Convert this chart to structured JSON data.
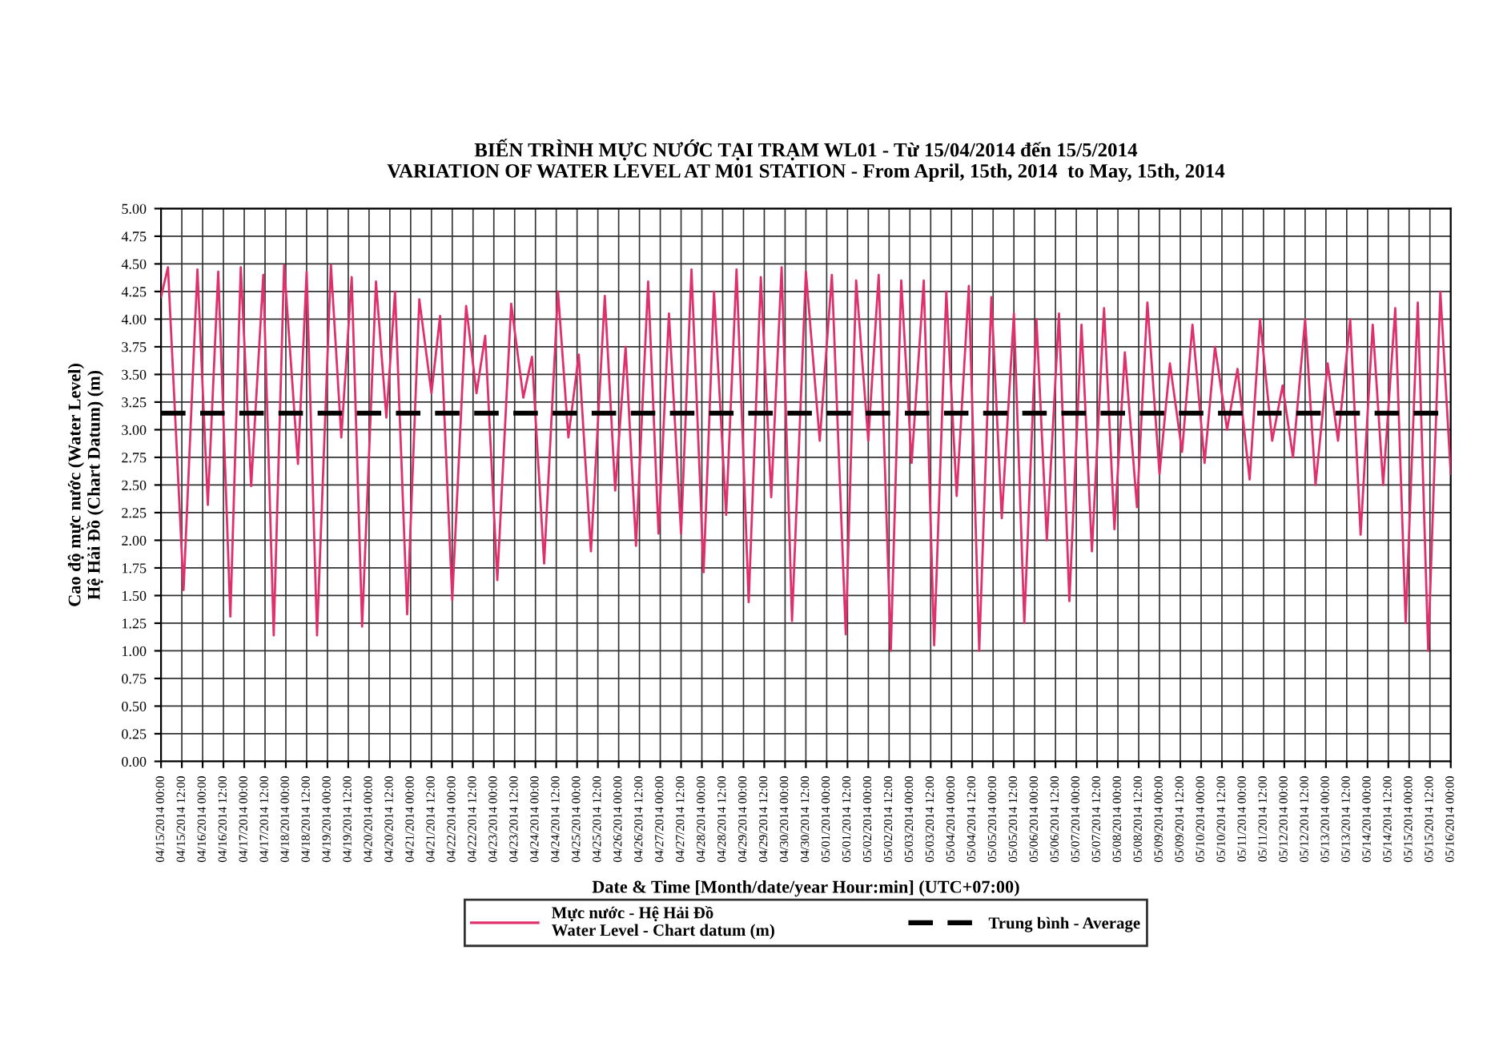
{
  "chart_data": {
    "type": "line",
    "title": "BIẾN TRÌNH MỰC NƯỚC TẠI TRẠM WL01 - Từ 15/04/2014 đến 15/5/2014\nVARIATION OF WATER LEVEL AT M01 STATION - From April, 15th, 2014  to May, 15th, 2014",
    "xlabel": "Date & Time [Month/date/year Hour:min] (UTC+07:00)",
    "ylabel": "Cao độ mực nước (Water Level)\nHệ Hải Đồ (Chart Datum) (m)",
    "series": [
      {
        "name": "Mực nước - Hệ Hải Đồ\nWater Level - Chart datum (m)",
        "color": "#e0306a",
        "x": [
          "2014-04-15T00:00",
          "2014-04-15T04:00",
          "2014-04-15T13:00",
          "2014-04-15T21:00",
          "2014-04-16T03:00",
          "2014-04-16T09:00",
          "2014-04-16T16:00",
          "2014-04-16T22:00",
          "2014-04-17T04:00",
          "2014-04-17T11:00",
          "2014-04-17T17:00",
          "2014-04-17T23:00",
          "2014-04-18T07:00",
          "2014-04-18T12:00",
          "2014-04-18T18:00",
          "2014-04-19T02:00",
          "2014-04-19T08:00",
          "2014-04-19T14:00",
          "2014-04-19T20:00",
          "2014-04-20T04:00",
          "2014-04-20T10:00",
          "2014-04-20T15:00",
          "2014-04-20T22:00",
          "2014-04-21T05:00",
          "2014-04-21T12:00",
          "2014-04-21T17:00",
          "2014-04-22T00:00",
          "2014-04-22T08:00",
          "2014-04-22T14:00",
          "2014-04-22T19:00",
          "2014-04-23T02:00",
          "2014-04-23T10:00",
          "2014-04-23T17:00",
          "2014-04-23T22:00",
          "2014-04-24T05:00",
          "2014-04-24T13:00",
          "2014-04-24T19:00",
          "2014-04-25T01:00",
          "2014-04-25T08:00",
          "2014-04-25T16:00",
          "2014-04-25T22:00",
          "2014-04-26T04:00",
          "2014-04-26T10:00",
          "2014-04-26T17:00",
          "2014-04-26T23:00",
          "2014-04-27T05:00",
          "2014-04-27T12:00",
          "2014-04-27T18:00",
          "2014-04-28T01:00",
          "2014-04-28T07:00",
          "2014-04-28T14:00",
          "2014-04-28T20:00",
          "2014-04-29T03:00",
          "2014-04-29T10:00",
          "2014-04-29T16:00",
          "2014-04-29T22:00",
          "2014-04-30T04:00",
          "2014-04-30T12:00",
          "2014-04-30T20:00",
          "2014-05-01T03:00",
          "2014-05-01T11:00",
          "2014-05-01T17:00",
          "2014-05-02T00:00",
          "2014-05-02T06:00",
          "2014-05-02T13:00",
          "2014-05-02T19:00",
          "2014-05-03T01:00",
          "2014-05-03T08:00",
          "2014-05-03T14:00",
          "2014-05-03T21:00",
          "2014-05-04T03:00",
          "2014-05-04T10:00",
          "2014-05-04T16:00",
          "2014-05-04T23:00",
          "2014-05-05T05:00",
          "2014-05-05T12:00",
          "2014-05-05T18:00",
          "2014-05-06T01:00",
          "2014-05-06T07:00",
          "2014-05-06T14:00",
          "2014-05-06T20:00",
          "2014-05-07T03:00",
          "2014-05-07T09:00",
          "2014-05-07T16:00",
          "2014-05-07T22:00",
          "2014-05-08T04:00",
          "2014-05-08T11:00",
          "2014-05-08T17:00",
          "2014-05-09T00:00",
          "2014-05-09T06:00",
          "2014-05-09T13:00",
          "2014-05-09T19:00",
          "2014-05-10T02:00",
          "2014-05-10T08:00",
          "2014-05-10T15:00",
          "2014-05-10T21:00",
          "2014-05-11T04:00",
          "2014-05-11T10:00",
          "2014-05-11T17:00",
          "2014-05-11T23:00",
          "2014-05-12T05:00",
          "2014-05-12T12:00",
          "2014-05-12T18:00",
          "2014-05-13T01:00",
          "2014-05-13T07:00",
          "2014-05-13T14:00",
          "2014-05-13T20:00",
          "2014-05-14T03:00",
          "2014-05-14T09:00",
          "2014-05-14T16:00",
          "2014-05-14T22:00",
          "2014-05-15T05:00",
          "2014-05-15T11:00",
          "2014-05-15T18:00",
          "2014-05-16T00:00"
        ],
        "values": [
          4.2,
          4.47,
          1.55,
          4.45,
          2.32,
          4.43,
          1.31,
          4.47,
          2.49,
          4.4,
          1.14,
          4.49,
          2.69,
          4.43,
          1.14,
          4.49,
          2.93,
          4.38,
          1.22,
          4.34,
          3.11,
          4.25,
          1.33,
          4.18,
          3.33,
          4.03,
          1.46,
          4.12,
          3.33,
          3.85,
          1.64,
          4.14,
          3.29,
          3.66,
          1.79,
          4.25,
          2.93,
          3.68,
          1.9,
          4.21,
          2.45,
          3.75,
          1.95,
          4.34,
          2.06,
          4.05,
          2.06,
          4.45,
          1.71,
          4.25,
          2.23,
          4.45,
          1.44,
          4.38,
          2.39,
          4.47,
          1.27,
          4.43,
          2.9,
          4.4,
          1.15,
          4.35,
          2.9,
          4.4,
          1.0,
          4.35,
          2.7,
          4.35,
          1.05,
          4.25,
          2.4,
          4.3,
          1.0,
          4.2,
          2.2,
          4.05,
          1.25,
          4.0,
          2.0,
          4.05,
          1.45,
          3.95,
          1.9,
          4.1,
          2.1,
          3.7,
          2.3,
          4.15,
          2.6,
          3.6,
          2.8,
          3.95,
          2.7,
          3.75,
          3.0,
          3.55,
          2.55,
          4.0,
          2.9,
          3.4,
          2.75,
          4.0,
          2.5,
          3.6,
          2.9,
          4.0,
          2.05,
          3.95,
          2.5,
          4.1,
          1.25,
          4.15,
          1.0,
          4.25,
          2.6
        ]
      }
    ],
    "ref_lines": [
      {
        "axis": "y",
        "value": 3.15,
        "label": "Trung bình - Average",
        "color": "#000000",
        "line_style": "dashed"
      }
    ],
    "xlim": [
      "2014-04-15T00:00",
      "2014-05-16T00:00"
    ],
    "xticks": [
      {
        "value": "2014-04-15T00:00",
        "label": "04/15/2014 00:00"
      },
      {
        "value": "2014-04-15T12:00",
        "label": "04/15/2014 12:00"
      },
      {
        "value": "2014-04-16T00:00",
        "label": "04/16/2014 00:00"
      },
      {
        "value": "2014-04-16T12:00",
        "label": "04/16/2014 12:00"
      },
      {
        "value": "2014-04-17T00:00",
        "label": "04/17/2014 00:00"
      },
      {
        "value": "2014-04-17T12:00",
        "label": "04/17/2014 12:00"
      },
      {
        "value": "2014-04-18T00:00",
        "label": "04/18/2014 00:00"
      },
      {
        "value": "2014-04-18T12:00",
        "label": "04/18/2014 12:00"
      },
      {
        "value": "2014-04-19T00:00",
        "label": "04/19/2014 00:00"
      },
      {
        "value": "2014-04-19T12:00",
        "label": "04/19/2014 12:00"
      },
      {
        "value": "2014-04-20T00:00",
        "label": "04/20/2014 00:00"
      },
      {
        "value": "2014-04-20T12:00",
        "label": "04/20/2014 12:00"
      },
      {
        "value": "2014-04-21T00:00",
        "label": "04/21/2014 00:00"
      },
      {
        "value": "2014-04-21T12:00",
        "label": "04/21/2014 12:00"
      },
      {
        "value": "2014-04-22T00:00",
        "label": "04/22/2014 00:00"
      },
      {
        "value": "2014-04-22T12:00",
        "label": "04/22/2014 12:00"
      },
      {
        "value": "2014-04-23T00:00",
        "label": "04/23/2014 00:00"
      },
      {
        "value": "2014-04-23T12:00",
        "label": "04/23/2014 12:00"
      },
      {
        "value": "2014-04-24T00:00",
        "label": "04/24/2014 00:00"
      },
      {
        "value": "2014-04-24T12:00",
        "label": "04/24/2014 12:00"
      },
      {
        "value": "2014-04-25T00:00",
        "label": "04/25/2014 00:00"
      },
      {
        "value": "2014-04-25T12:00",
        "label": "04/25/2014 12:00"
      },
      {
        "value": "2014-04-26T00:00",
        "label": "04/26/2014 00:00"
      },
      {
        "value": "2014-04-26T12:00",
        "label": "04/26/2014 12:00"
      },
      {
        "value": "2014-04-27T00:00",
        "label": "04/27/2014 00:00"
      },
      {
        "value": "2014-04-27T12:00",
        "label": "04/27/2014 12:00"
      },
      {
        "value": "2014-04-28T00:00",
        "label": "04/28/2014 00:00"
      },
      {
        "value": "2014-04-28T12:00",
        "label": "04/28/2014 12:00"
      },
      {
        "value": "2014-04-29T00:00",
        "label": "04/29/2014 00:00"
      },
      {
        "value": "2014-04-29T12:00",
        "label": "04/29/2014 12:00"
      },
      {
        "value": "2014-04-30T00:00",
        "label": "04/30/2014 00:00"
      },
      {
        "value": "2014-04-30T12:00",
        "label": "04/30/2014 12:00"
      },
      {
        "value": "2014-05-01T00:00",
        "label": "05/01/2014 00:00"
      },
      {
        "value": "2014-05-01T12:00",
        "label": "05/01/2014 12:00"
      },
      {
        "value": "2014-05-02T00:00",
        "label": "05/02/2014 00:00"
      },
      {
        "value": "2014-05-02T12:00",
        "label": "05/02/2014 12:00"
      },
      {
        "value": "2014-05-03T00:00",
        "label": "05/03/2014 00:00"
      },
      {
        "value": "2014-05-03T12:00",
        "label": "05/03/2014 12:00"
      },
      {
        "value": "2014-05-04T00:00",
        "label": "05/04/2014 00:00"
      },
      {
        "value": "2014-05-04T12:00",
        "label": "05/04/2014 12:00"
      },
      {
        "value": "2014-05-05T00:00",
        "label": "05/05/2014 00:00"
      },
      {
        "value": "2014-05-05T12:00",
        "label": "05/05/2014 12:00"
      },
      {
        "value": "2014-05-06T00:00",
        "label": "05/06/2014 00:00"
      },
      {
        "value": "2014-05-06T12:00",
        "label": "05/06/2014 12:00"
      },
      {
        "value": "2014-05-07T00:00",
        "label": "05/07/2014 00:00"
      },
      {
        "value": "2014-05-07T12:00",
        "label": "05/07/2014 12:00"
      },
      {
        "value": "2014-05-08T00:00",
        "label": "05/08/2014 00:00"
      },
      {
        "value": "2014-05-08T12:00",
        "label": "05/08/2014 12:00"
      },
      {
        "value": "2014-05-09T00:00",
        "label": "05/09/2014 00:00"
      },
      {
        "value": "2014-05-09T12:00",
        "label": "05/09/2014 12:00"
      },
      {
        "value": "2014-05-10T00:00",
        "label": "05/10/2014 00:00"
      },
      {
        "value": "2014-05-10T12:00",
        "label": "05/10/2014 12:00"
      },
      {
        "value": "2014-05-11T00:00",
        "label": "05/11/2014 00:00"
      },
      {
        "value": "2014-05-11T12:00",
        "label": "05/11/2014 12:00"
      },
      {
        "value": "2014-05-12T00:00",
        "label": "05/12/2014 00:00"
      },
      {
        "value": "2014-05-12T12:00",
        "label": "05/12/2014 12:00"
      },
      {
        "value": "2014-05-13T00:00",
        "label": "05/13/2014 00:00"
      },
      {
        "value": "2014-05-13T12:00",
        "label": "05/13/2014 12:00"
      },
      {
        "value": "2014-05-14T00:00",
        "label": "05/14/2014 00:00"
      },
      {
        "value": "2014-05-14T12:00",
        "label": "05/14/2014 12:00"
      },
      {
        "value": "2014-05-15T00:00",
        "label": "05/15/2014 00:00"
      },
      {
        "value": "2014-05-15T12:00",
        "label": "05/15/2014 12:00"
      },
      {
        "value": "2014-05-16T00:00",
        "label": "05/16/2014 00:00"
      }
    ],
    "ylim": [
      0,
      5
    ],
    "yticks": [
      {
        "value": 0,
        "label": "0.00"
      },
      {
        "value": 0.25,
        "label": "0.25"
      },
      {
        "value": 0.5,
        "label": "0.50"
      },
      {
        "value": 0.75,
        "label": "0.75"
      },
      {
        "value": 1,
        "label": "1.00"
      },
      {
        "value": 1.25,
        "label": "1.25"
      },
      {
        "value": 1.5,
        "label": "1.50"
      },
      {
        "value": 1.75,
        "label": "1.75"
      },
      {
        "value": 2,
        "label": "2.00"
      },
      {
        "value": 2.25,
        "label": "2.25"
      },
      {
        "value": 2.5,
        "label": "2.50"
      },
      {
        "value": 2.75,
        "label": "2.75"
      },
      {
        "value": 3,
        "label": "3.00"
      },
      {
        "value": 3.25,
        "label": "3.25"
      },
      {
        "value": 3.5,
        "label": "3.50"
      },
      {
        "value": 3.75,
        "label": "3.75"
      },
      {
        "value": 4,
        "label": "4.00"
      },
      {
        "value": 4.25,
        "label": "4.25"
      },
      {
        "value": 4.5,
        "label": "4.50"
      },
      {
        "value": 4.75,
        "label": "4.75"
      },
      {
        "value": 5,
        "label": "5.00"
      }
    ],
    "grid": true,
    "legend": "bottom",
    "marker": "none",
    "line_style": "solid"
  }
}
